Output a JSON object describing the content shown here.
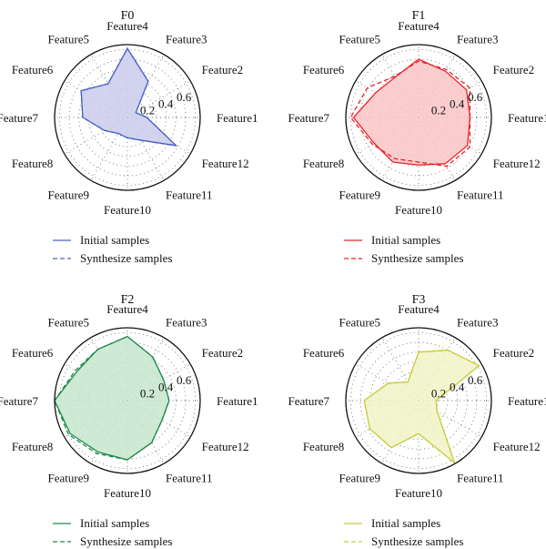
{
  "chart_data": [
    {
      "type": "radar",
      "title": "F0",
      "axes": [
        "Feature1",
        "Feature2",
        "Feature3",
        "Feature4",
        "Feature5",
        "Feature6",
        "Feature7",
        "Feature8",
        "Feature9",
        "Feature10",
        "Feature11",
        "Feature12"
      ],
      "radial_ticks": [
        "0.2",
        "0.4",
        "0.6"
      ],
      "rmax": 0.75,
      "grid": true,
      "legend_position": "bottom-left",
      "color": "#4a63c4",
      "fill": "#c9cbec",
      "series": [
        {
          "name": "Initial samples",
          "style": "solid",
          "values": [
            0.2,
            0.1,
            0.43,
            0.71,
            0.4,
            0.55,
            0.46,
            0.27,
            0.19,
            0.21,
            0.27,
            0.58
          ]
        },
        {
          "name": "Synthesize samples",
          "style": "dashed",
          "values": [
            0.2,
            0.1,
            0.43,
            0.71,
            0.4,
            0.55,
            0.46,
            0.27,
            0.19,
            0.21,
            0.27,
            0.58
          ]
        }
      ]
    },
    {
      "type": "radar",
      "title": "F1",
      "axes": [
        "Feature1",
        "Feature2",
        "Feature3",
        "Feature4",
        "Feature5",
        "Feature6",
        "Feature7",
        "Feature8",
        "Feature9",
        "Feature10",
        "Feature11",
        "Feature12"
      ],
      "radial_ticks": [
        "0.2",
        "0.4",
        "0.6"
      ],
      "rmax": 0.75,
      "grid": true,
      "legend_position": "bottom-left",
      "color": "#e8232a",
      "fill": "#f9c4c6",
      "series": [
        {
          "name": "Initial samples",
          "style": "solid",
          "values": [
            0.53,
            0.57,
            0.55,
            0.6,
            0.48,
            0.51,
            0.67,
            0.53,
            0.53,
            0.49,
            0.55,
            0.58
          ]
        },
        {
          "name": "Synthesize samples",
          "style": "dashed",
          "values": [
            0.53,
            0.61,
            0.57,
            0.58,
            0.49,
            0.61,
            0.7,
            0.55,
            0.49,
            0.46,
            0.58,
            0.61
          ]
        }
      ]
    },
    {
      "type": "radar",
      "title": "F2",
      "axes": [
        "Feature1",
        "Feature2",
        "Feature3",
        "Feature4",
        "Feature5",
        "Feature6",
        "Feature7",
        "Feature8",
        "Feature9",
        "Feature10",
        "Feature11",
        "Feature12"
      ],
      "radial_ticks": [
        "0.2",
        "0.4",
        "0.6"
      ],
      "rmax": 0.75,
      "grid": true,
      "legend_position": "bottom-left",
      "color": "#1e8a4c",
      "fill": "#c6e6cc",
      "series": [
        {
          "name": "Initial samples",
          "style": "solid",
          "values": [
            0.43,
            0.43,
            0.52,
            0.66,
            0.61,
            0.6,
            0.75,
            0.68,
            0.61,
            0.61,
            0.5,
            0.41
          ]
        },
        {
          "name": "Synthesize samples",
          "style": "dashed",
          "values": [
            0.43,
            0.43,
            0.52,
            0.66,
            0.61,
            0.62,
            0.75,
            0.7,
            0.63,
            0.61,
            0.5,
            0.41
          ]
        }
      ]
    },
    {
      "type": "radar",
      "title": "F3",
      "axes": [
        "Feature1",
        "Feature2",
        "Feature3",
        "Feature4",
        "Feature5",
        "Feature6",
        "Feature7",
        "Feature8",
        "Feature9",
        "Feature10",
        "Feature11",
        "Feature12"
      ],
      "radial_ticks": [
        "0.2",
        "0.4",
        "0.6"
      ],
      "rmax": 0.75,
      "grid": true,
      "legend_position": "bottom-left",
      "color": "#c9cc3f",
      "fill": "#f1f3c6",
      "series": [
        {
          "name": "Initial samples",
          "style": "solid",
          "values": [
            0.18,
            0.72,
            0.6,
            0.5,
            0.22,
            0.36,
            0.56,
            0.58,
            0.56,
            0.34,
            0.74,
            0.22
          ]
        },
        {
          "name": "Synthesize samples",
          "style": "dashed",
          "values": [
            0.18,
            0.72,
            0.6,
            0.5,
            0.22,
            0.36,
            0.56,
            0.58,
            0.56,
            0.34,
            0.74,
            0.22
          ]
        }
      ]
    }
  ]
}
